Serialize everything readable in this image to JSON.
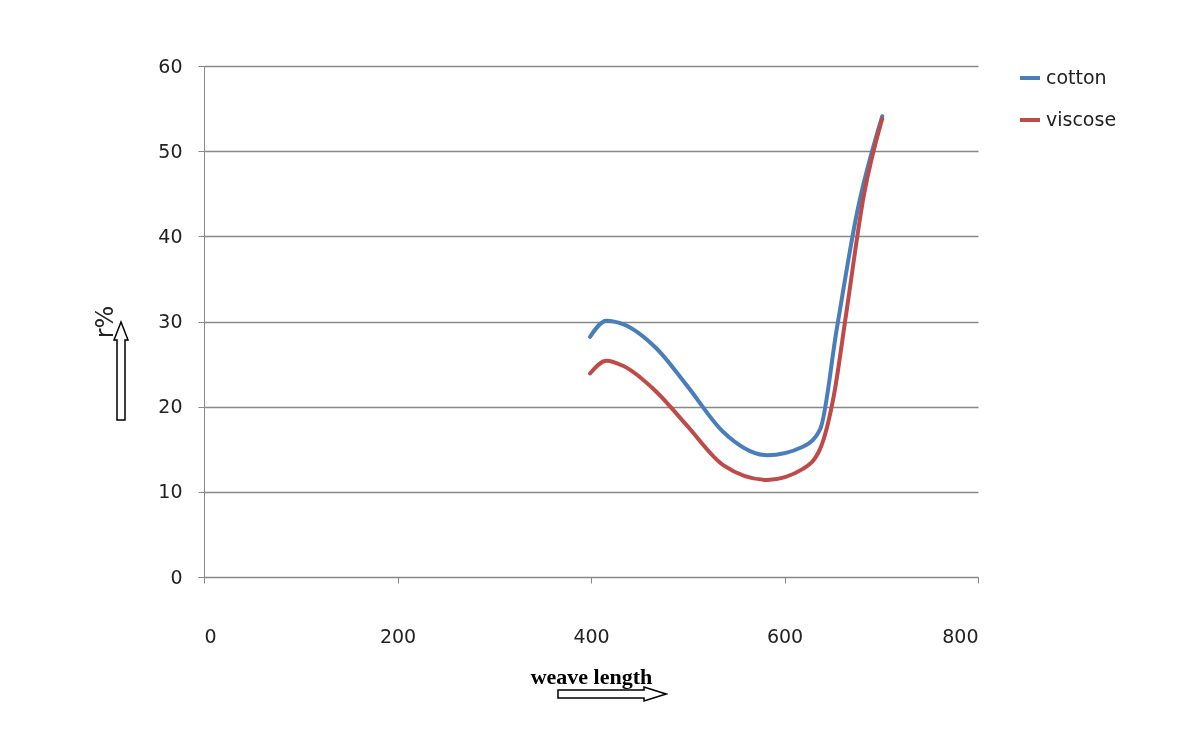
{
  "chart_data": {
    "type": "line",
    "xlabel": "weave length",
    "ylabel": "r%",
    "xlim": [
      0,
      800
    ],
    "xticks": [
      0,
      200,
      400,
      600,
      800
    ],
    "ylim": [
      0,
      60
    ],
    "yticks": [
      0,
      10,
      20,
      30,
      40,
      50,
      60
    ],
    "grid": "y",
    "legend": "right",
    "marker": "none",
    "line_style": "solid",
    "series": [
      {
        "name": "cotton",
        "color": "#4a7ebb",
        "x": [
          399,
          416,
          433,
          468,
          499,
          537,
          582,
          619,
          637,
          654,
          675,
          701
        ],
        "values": [
          28.2,
          30.1,
          29.7,
          26.8,
          22.5,
          17.0,
          14.3,
          15.3,
          17.4,
          29.1,
          42.8,
          54.1
        ]
      },
      {
        "name": "viscose",
        "color": "#be4b48",
        "x": [
          399,
          416,
          433,
          468,
          499,
          537,
          582,
          619,
          637,
          651,
          664,
          682,
          701
        ],
        "values": [
          23.9,
          25.4,
          24.8,
          21.7,
          17.8,
          13.1,
          11.4,
          12.7,
          15.1,
          21.3,
          31.1,
          44.8,
          53.8
        ]
      }
    ]
  }
}
